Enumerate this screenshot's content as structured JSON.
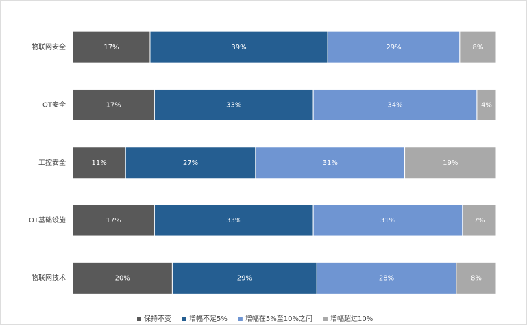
{
  "chart_data": {
    "type": "bar_stacked_percent",
    "categories": [
      "物联网安全",
      "OT安全",
      "工控安全",
      "OT基础设施",
      "物联网技术"
    ],
    "series": [
      {
        "name": "保持不变",
        "color": "#595959",
        "values": [
          17,
          17,
          11,
          17,
          20
        ],
        "value_labels": [
          "17%",
          "17%",
          "11%",
          "17%",
          "20%"
        ]
      },
      {
        "name": "增幅不足5%",
        "color": "#255e91",
        "values": [
          39,
          33,
          27,
          33,
          29
        ],
        "value_labels": [
          "39%",
          "33%",
          "27%",
          "33%",
          "29%"
        ]
      },
      {
        "name": "增幅在5%至10%之间",
        "color": "#6f95d2",
        "values": [
          29,
          34,
          31,
          31,
          28
        ],
        "value_labels": [
          "29%",
          "34%",
          "31%",
          "31%",
          "28%"
        ]
      },
      {
        "name": "增幅超过10%",
        "color": "#a9a9a9",
        "values": [
          8,
          4,
          19,
          7,
          8
        ],
        "value_labels": [
          "8%",
          "4%",
          "19%",
          "7%",
          "8%"
        ]
      }
    ],
    "legend": "bottom"
  }
}
